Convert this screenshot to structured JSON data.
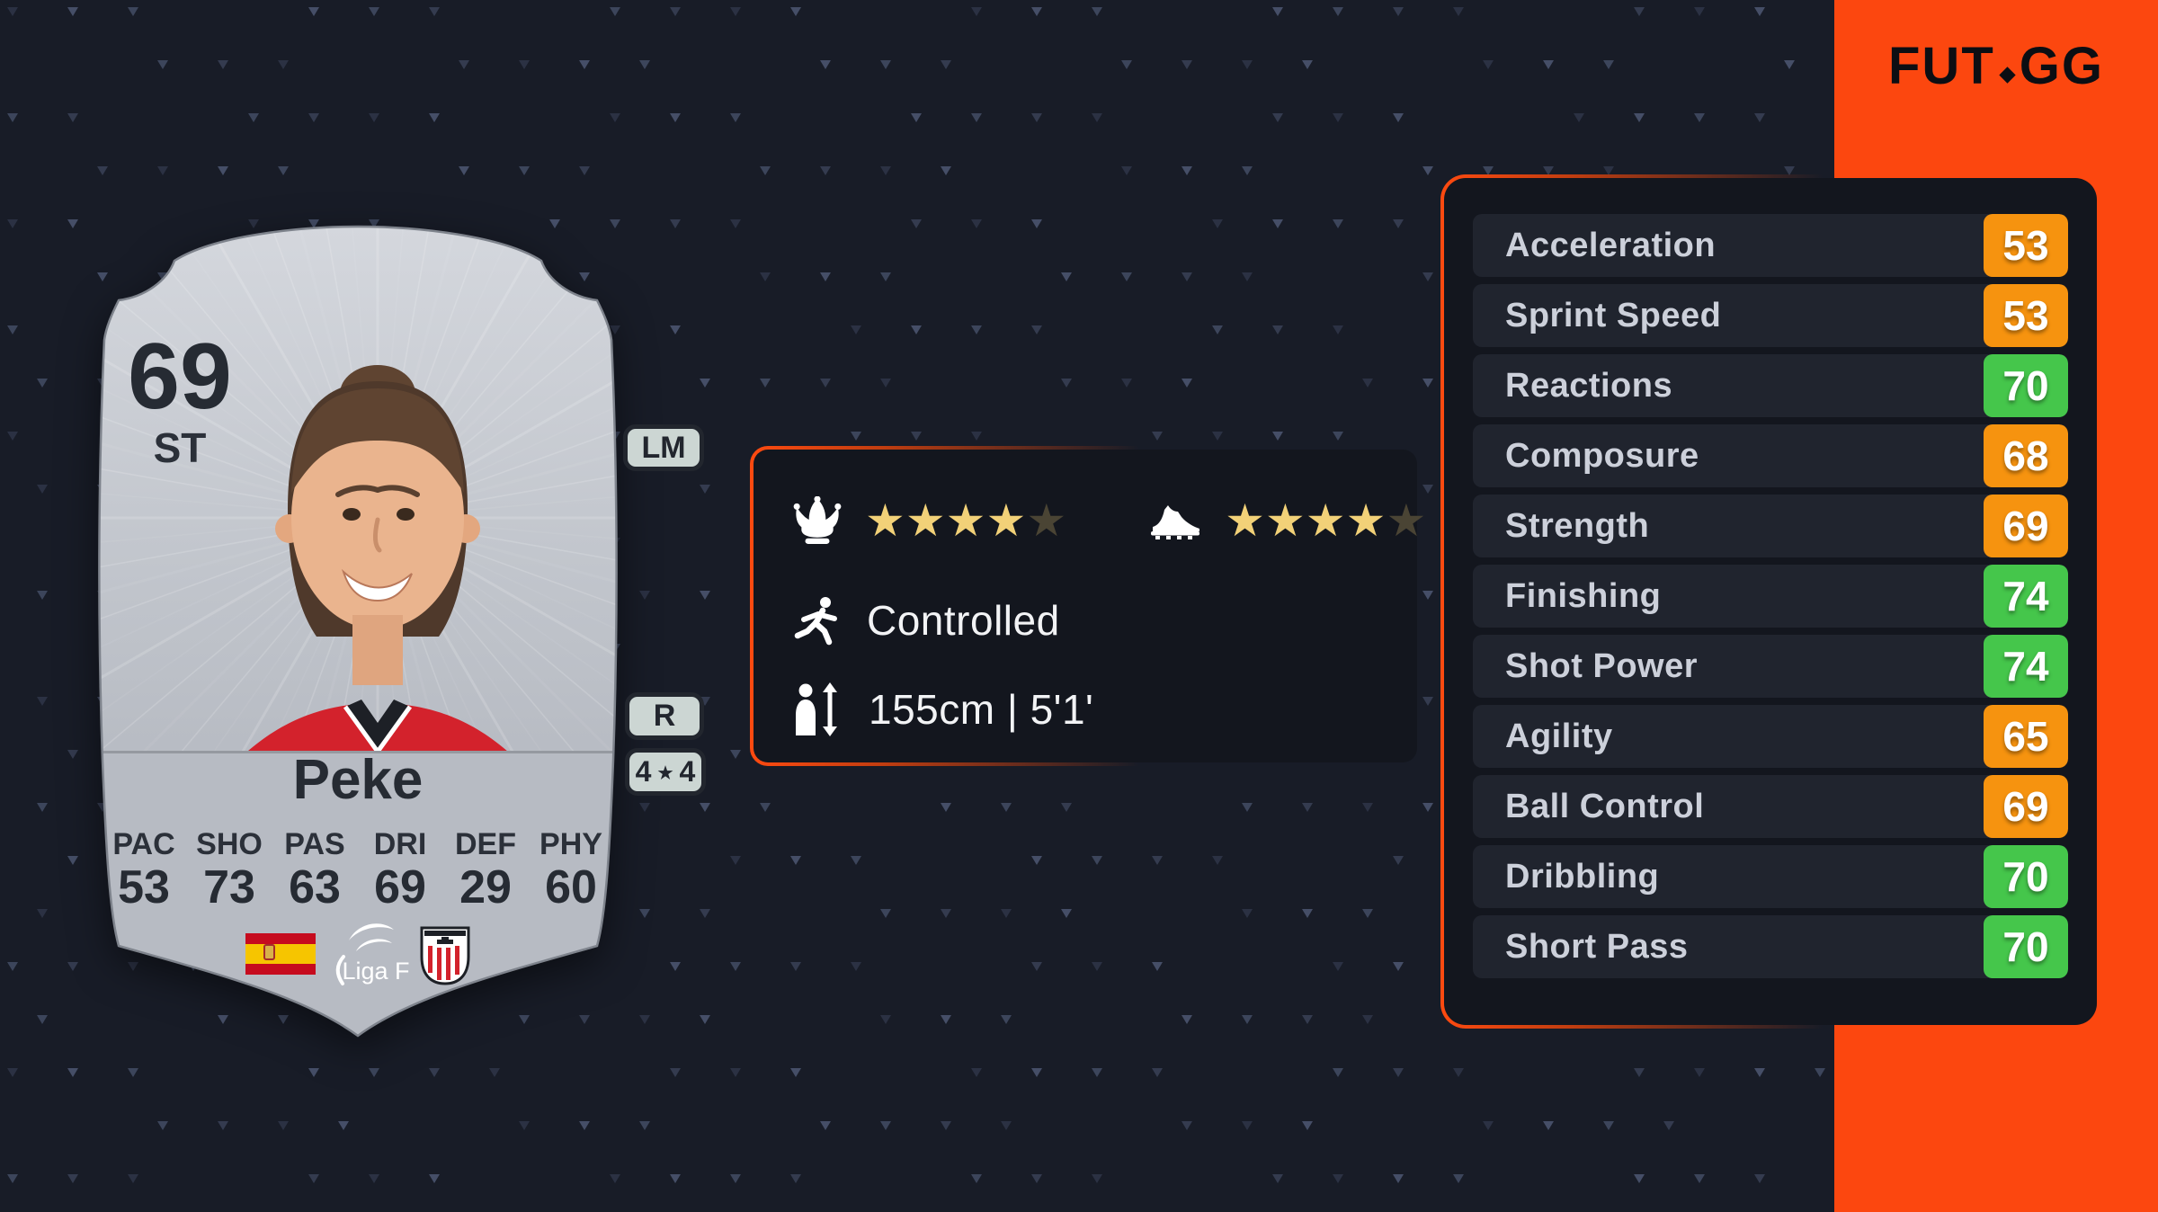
{
  "colors": {
    "page_bg": "#181c27",
    "accent": "#fc470f",
    "panel_bg": "#13161e",
    "row_bg": "#20242e",
    "stat_orange": "#f6930f",
    "stat_green": "#45c64b",
    "gold_star": "#f2d178",
    "empty_star": "#4a4434",
    "badge_bg": "#ccd6d3",
    "badge_border": "#22262e",
    "card_text": "#262b33"
  },
  "logo": {
    "fut": "FUT",
    "gg": "GG"
  },
  "player_card": {
    "rating": "69",
    "position": "ST",
    "name": "Peke",
    "alt_position": "LM",
    "preferred_foot": "R",
    "skill_moves": "4",
    "weak_foot": "4",
    "star_glyph": "★",
    "quick_stats": [
      {
        "label": "PAC",
        "value": "53"
      },
      {
        "label": "SHO",
        "value": "73"
      },
      {
        "label": "PAS",
        "value": "63"
      },
      {
        "label": "DRI",
        "value": "69"
      },
      {
        "label": "DEF",
        "value": "29"
      },
      {
        "label": "PHY",
        "value": "60"
      }
    ],
    "nation": "Spain",
    "league": "Liga F",
    "club": "Athletic Club"
  },
  "info_panel": {
    "skill_moves_stars": 4,
    "weak_foot_stars": 4,
    "stars_max": 5,
    "run_style": "Controlled",
    "height": "155cm | 5'1'"
  },
  "detailed_stats": [
    {
      "label": "Acceleration",
      "value": "53",
      "tone": "orange"
    },
    {
      "label": "Sprint Speed",
      "value": "53",
      "tone": "orange"
    },
    {
      "label": "Reactions",
      "value": "70",
      "tone": "green"
    },
    {
      "label": "Composure",
      "value": "68",
      "tone": "orange"
    },
    {
      "label": "Strength",
      "value": "69",
      "tone": "orange"
    },
    {
      "label": "Finishing",
      "value": "74",
      "tone": "green"
    },
    {
      "label": "Shot Power",
      "value": "74",
      "tone": "green"
    },
    {
      "label": "Agility",
      "value": "65",
      "tone": "orange"
    },
    {
      "label": "Ball Control",
      "value": "69",
      "tone": "orange"
    },
    {
      "label": "Dribbling",
      "value": "70",
      "tone": "green"
    },
    {
      "label": "Short Pass",
      "value": "70",
      "tone": "green"
    }
  ]
}
